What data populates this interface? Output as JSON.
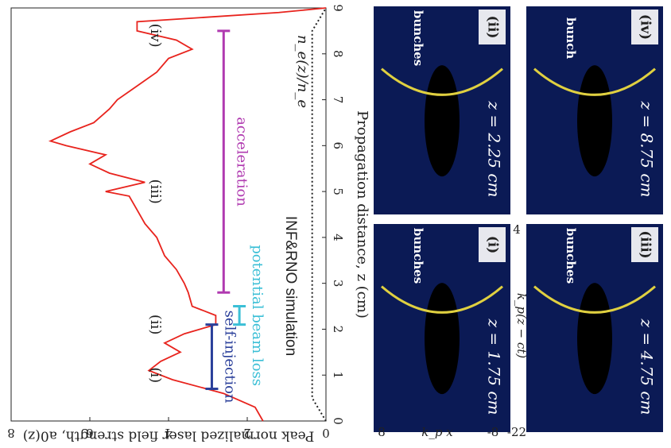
{
  "chart_data": {
    "type": "line",
    "xlabel": "Propagation distance, z (cm)",
    "ylabel": "Peak normalized laser field strength, a0(z)",
    "x": [
      0,
      0.3,
      0.6,
      0.9,
      1.1,
      1.3,
      1.5,
      1.7,
      1.9,
      2.1,
      2.3,
      2.5,
      2.8,
      3.0,
      3.3,
      3.6,
      4.0,
      4.3,
      4.6,
      4.9,
      5.0,
      5.2,
      5.4,
      5.6,
      5.8,
      6.0,
      6.1,
      6.3,
      6.5,
      6.8,
      7.0,
      7.3,
      7.6,
      7.9,
      8.1,
      8.3,
      8.5,
      8.7,
      8.8,
      8.9,
      9.0
    ],
    "series": [
      {
        "color": "#e8231d",
        "values": [
          1.6,
          1.8,
          2.6,
          3.9,
          4.5,
          4.2,
          3.7,
          4.1,
          3.6,
          2.8,
          2.8,
          3.4,
          3.5,
          3.6,
          3.8,
          4.1,
          4.3,
          4.6,
          4.8,
          5.0,
          5.6,
          4.6,
          5.5,
          6.0,
          5.6,
          6.6,
          7.0,
          6.5,
          5.9,
          5.5,
          5.3,
          4.8,
          4.3,
          4.0,
          3.4,
          3.8,
          4.8,
          4.8,
          3.0,
          1.2,
          0
        ]
      },
      {
        "name": "n_e(z)/n_e",
        "color": "#222222",
        "dashed": true,
        "x": [
          0,
          0.5,
          8.5,
          9
        ],
        "values": [
          0,
          0.35,
          0.35,
          0
        ]
      }
    ],
    "xlim": [
      0,
      9
    ],
    "xticks": [
      0,
      1,
      2,
      3,
      4,
      5,
      6,
      7,
      8,
      9
    ],
    "ylim": [
      0,
      8
    ],
    "yticks": [
      0,
      2,
      4,
      6,
      8
    ],
    "intervals": [
      {
        "label": "self-injection",
        "start": 0.7,
        "end": 2.1,
        "level": 2.9,
        "color": "#2a3f9a"
      },
      {
        "label": "potential beam loss",
        "start": 2.1,
        "end": 2.5,
        "level": 2.2,
        "color": "#3bbfd6"
      },
      {
        "label": "acceleration",
        "start": 2.8,
        "end": 8.5,
        "level": 2.6,
        "color": "#b03ab0"
      }
    ],
    "point_labels": [
      {
        "label": "(i)",
        "x": 1.0
      },
      {
        "label": "(ii)",
        "x": 2.1
      },
      {
        "label": "(iii)",
        "x": 5.0
      },
      {
        "label": "(iv)",
        "x": 8.4
      }
    ],
    "note": "INF&RNO simulation"
  },
  "panels": [
    {
      "tag": "(i)",
      "z": "z = 1.75 cm",
      "marker": "bunches"
    },
    {
      "tag": "(ii)",
      "z": "z = 2.25 cm",
      "marker": "bunches"
    },
    {
      "tag": "(iii)",
      "z": "z = 4.75 cm",
      "marker": "bunches"
    },
    {
      "tag": "(iv)",
      "z": "z = 8.75 cm",
      "marker": "bunch"
    }
  ],
  "panel_axes": {
    "ymax": "8",
    "ymin": "-8",
    "ylabel": "k_p x",
    "xmin": "-22",
    "xmax": "4",
    "xlabel": "k_p(z − ct)"
  }
}
